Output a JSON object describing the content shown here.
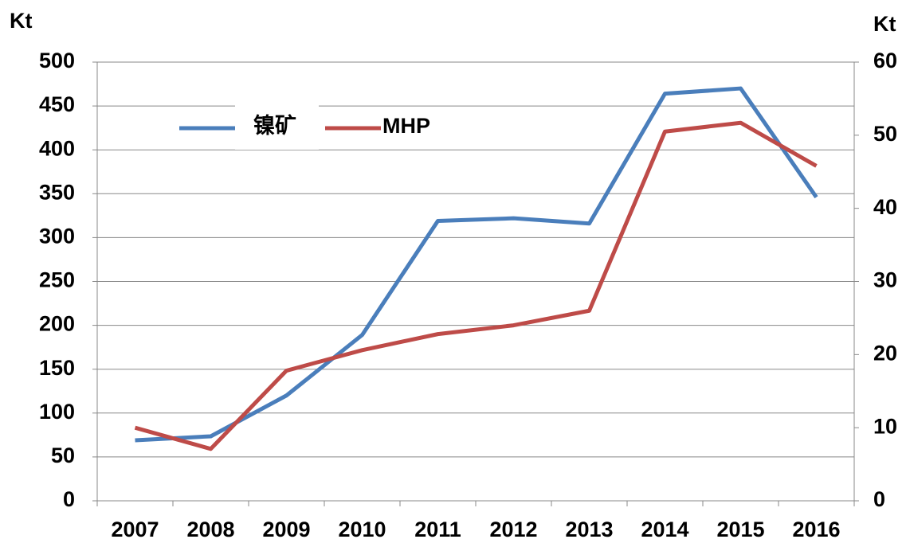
{
  "chart_data": {
    "type": "line",
    "y_label": "Kt",
    "y2_label": "Kt",
    "categories": [
      "2007",
      "2008",
      "2009",
      "2010",
      "2011",
      "2012",
      "2013",
      "2014",
      "2015",
      "2016"
    ],
    "series": [
      {
        "name": "镍矿",
        "color": "#4a7ebb",
        "values": [
          69,
          73.5,
          120,
          189,
          319,
          322,
          316,
          464,
          470,
          346
        ]
      },
      {
        "name": "MHP",
        "color": "#be4b48",
        "axis": "y2",
        "values": [
          10.0,
          7.1,
          17.8,
          20.6,
          22.8,
          24.0,
          26.0,
          50.5,
          51.7,
          45.8
        ]
      }
    ],
    "ylim": [
      0,
      500
    ],
    "yticks": [
      0,
      50,
      100,
      150,
      200,
      250,
      300,
      350,
      400,
      450,
      500
    ],
    "y2lim": [
      0,
      60
    ],
    "y2ticks": [
      0,
      10,
      20,
      30,
      40,
      50,
      60
    ],
    "grid": true,
    "legend": "top-left"
  }
}
